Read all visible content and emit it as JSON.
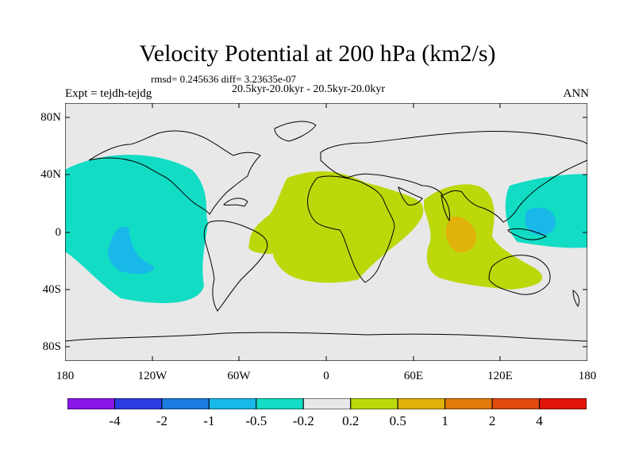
{
  "title": "Velocity Potential at 200 hPa (km2/s)",
  "subtitle_stats": "rmsd= 0.245636 diff= 3.23635e-07",
  "subtitle_periods": "20.5kyr-20.0kyr - 20.5kyr-20.0kyr",
  "experiment": "Expt = tejdh-tejdg",
  "season": "ANN",
  "map": {
    "y_ticks": [
      "80N",
      "40N",
      "0",
      "40S",
      "80S"
    ],
    "x_ticks": [
      "180",
      "120W",
      "60W",
      "0",
      "60E",
      "120E",
      "180"
    ],
    "background_color": "#e8e8e8"
  },
  "colorbar": {
    "colors": [
      "#8a18e8",
      "#2a3ee0",
      "#1a7ce0",
      "#18b8e8",
      "#12dcc4",
      "#e8e8e8",
      "#bcd80a",
      "#e0b20a",
      "#e07a0a",
      "#e04a0a",
      "#e0160a"
    ],
    "labels": [
      "-4",
      "-2",
      "-1",
      "-0.5",
      "-0.2",
      "0.2",
      "0.5",
      "1",
      "2",
      "4"
    ]
  }
}
